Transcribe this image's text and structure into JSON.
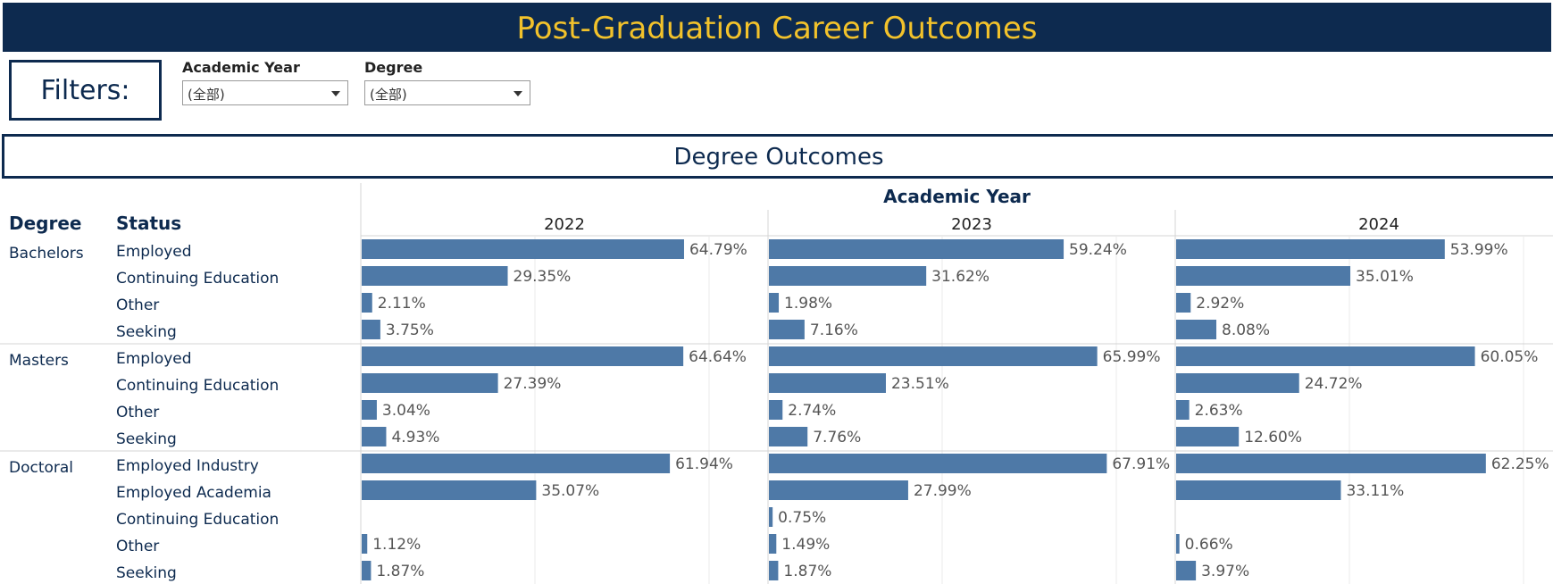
{
  "title": "Post-Graduation Career Outcomes",
  "filters": {
    "heading": "Filters:",
    "academic_year": {
      "label": "Academic Year",
      "value": "(全部)"
    },
    "degree": {
      "label": "Degree",
      "value": "(全部)"
    }
  },
  "section_title": "Degree Outcomes",
  "colors": {
    "bar": "#4e79a7",
    "header_bg": "#0d2a4f",
    "title_text": "#f2c22b",
    "label_text": "#555555"
  },
  "chart_data": {
    "type": "bar",
    "orientation": "horizontal",
    "column_header": "Academic Year",
    "row_headers": [
      "Degree",
      "Status"
    ],
    "years": [
      "2022",
      "2023",
      "2024"
    ],
    "xlim": [
      0,
      70
    ],
    "grid": true,
    "groups": [
      {
        "degree": "Bachelors",
        "rows": [
          {
            "status": "Employed",
            "values": [
              64.79,
              59.24,
              53.99
            ],
            "labels": [
              "64.79%",
              "59.24%",
              "53.99%"
            ]
          },
          {
            "status": "Continuing Education",
            "values": [
              29.35,
              31.62,
              35.01
            ],
            "labels": [
              "29.35%",
              "31.62%",
              "35.01%"
            ]
          },
          {
            "status": "Other",
            "values": [
              2.11,
              1.98,
              2.92
            ],
            "labels": [
              "2.11%",
              "1.98%",
              "2.92%"
            ]
          },
          {
            "status": "Seeking",
            "values": [
              3.75,
              7.16,
              8.08
            ],
            "labels": [
              "3.75%",
              "7.16%",
              "8.08%"
            ]
          }
        ]
      },
      {
        "degree": "Masters",
        "rows": [
          {
            "status": "Employed",
            "values": [
              64.64,
              65.99,
              60.05
            ],
            "labels": [
              "64.64%",
              "65.99%",
              "60.05%"
            ]
          },
          {
            "status": "Continuing Education",
            "values": [
              27.39,
              23.51,
              24.72
            ],
            "labels": [
              "27.39%",
              "23.51%",
              "24.72%"
            ]
          },
          {
            "status": "Other",
            "values": [
              3.04,
              2.74,
              2.63
            ],
            "labels": [
              "3.04%",
              "2.74%",
              "2.63%"
            ]
          },
          {
            "status": "Seeking",
            "values": [
              4.93,
              7.76,
              12.6
            ],
            "labels": [
              "4.93%",
              "7.76%",
              "12.60%"
            ]
          }
        ]
      },
      {
        "degree": "Doctoral",
        "rows": [
          {
            "status": "Employed Industry",
            "values": [
              61.94,
              67.91,
              62.25
            ],
            "labels": [
              "61.94%",
              "67.91%",
              "62.25%"
            ]
          },
          {
            "status": "Employed Academia",
            "values": [
              35.07,
              27.99,
              33.11
            ],
            "labels": [
              "35.07%",
              "27.99%",
              "33.11%"
            ]
          },
          {
            "status": "Continuing Education",
            "values": [
              null,
              0.75,
              null
            ],
            "labels": [
              "",
              "0.75%",
              ""
            ]
          },
          {
            "status": "Other",
            "values": [
              1.12,
              1.49,
              0.66
            ],
            "labels": [
              "1.12%",
              "1.49%",
              "0.66%"
            ]
          },
          {
            "status": "Seeking",
            "values": [
              1.87,
              1.87,
              3.97
            ],
            "labels": [
              "1.87%",
              "1.87%",
              "3.97%"
            ]
          }
        ]
      }
    ]
  }
}
